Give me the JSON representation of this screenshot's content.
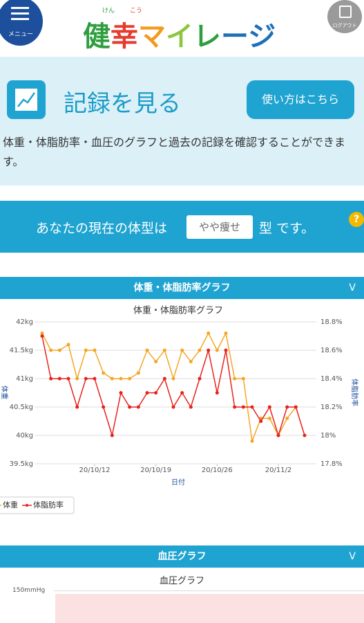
{
  "header": {
    "menu": "メニュー",
    "logo": "健幸マイレージ",
    "ruby": [
      "けん",
      "こう"
    ],
    "logout": "ログアウト"
  },
  "section": {
    "title": "記録を見る",
    "button": "使い方はこちら",
    "description": "体重・体脂肪率・血圧のグラフと過去の記録を確認することができます。"
  },
  "body_type": {
    "prefix": "あなたの現在の体型は",
    "value": "やや痩せ",
    "suffix": "型 です。",
    "help": "?"
  },
  "weight_panel": {
    "header": "体重・体脂肪率グラフ",
    "toggle": "V"
  },
  "chart_data": {
    "type": "line",
    "title": "体重・体脂肪率グラフ",
    "xlabel": "日付",
    "ylabel": "体重",
    "y2label": "体脂肪率",
    "x": [
      "20/10/6",
      "20/10/7",
      "20/10/8",
      "20/10/9",
      "20/10/10",
      "20/10/11",
      "20/10/12",
      "20/10/13",
      "20/10/14",
      "20/10/15",
      "20/10/16",
      "20/10/17",
      "20/10/18",
      "20/10/19",
      "20/10/20",
      "20/10/21",
      "20/10/22",
      "20/10/23",
      "20/10/24",
      "20/10/25",
      "20/10/26",
      "20/10/27",
      "20/10/28",
      "20/10/29",
      "20/10/30",
      "20/10/31",
      "20/11/1",
      "20/11/2",
      "20/11/3",
      "20/11/4",
      "20/11/5"
    ],
    "xticks": [
      "20/10/12",
      "20/10/19",
      "20/10/26",
      "20/11/2"
    ],
    "ylim": [
      39.5,
      42
    ],
    "yticks": [
      {
        "value": 39.5,
        "label": "39.5kg"
      },
      {
        "value": 40,
        "label": "40kg"
      },
      {
        "value": 40.5,
        "label": "40.5kg"
      },
      {
        "value": 41,
        "label": "41kg"
      },
      {
        "value": 41.5,
        "label": "41.5kg"
      },
      {
        "value": 42,
        "label": "42kg"
      }
    ],
    "y2lim": [
      17.8,
      18.8
    ],
    "y2ticks": [
      {
        "value": 17.8,
        "label": "17.8%"
      },
      {
        "value": 18,
        "label": "18%"
      },
      {
        "value": 18.2,
        "label": "18.2%"
      },
      {
        "value": 18.4,
        "label": "18.4%"
      },
      {
        "value": 18.6,
        "label": "18.6%"
      },
      {
        "value": 18.8,
        "label": "18.8%"
      }
    ],
    "grid": true,
    "series": [
      {
        "name": "体重",
        "color": "#f5a623",
        "values": [
          41.8,
          41.5,
          41.5,
          41.6,
          41.0,
          41.5,
          41.5,
          41.1,
          41.0,
          41.0,
          41.0,
          41.1,
          41.5,
          41.3,
          41.5,
          41.0,
          41.5,
          41.3,
          41.5,
          41.8,
          41.5,
          41.8,
          41.0,
          41.0,
          39.9,
          40.3,
          40.3,
          40.0,
          40.3,
          40.5,
          null
        ]
      },
      {
        "name": "体脂肪率",
        "color": "#e8211b",
        "axis": "y2",
        "values": [
          18.7,
          18.4,
          18.4,
          18.4,
          18.2,
          18.4,
          18.4,
          18.2,
          18.0,
          18.3,
          18.2,
          18.2,
          18.3,
          18.3,
          18.4,
          18.2,
          18.3,
          18.2,
          18.4,
          18.6,
          18.3,
          18.6,
          18.2,
          18.2,
          18.2,
          18.1,
          18.2,
          18.0,
          18.2,
          18.2,
          18.0
        ]
      }
    ]
  },
  "bp_panel": {
    "header": "血圧グラフ",
    "toggle": "V",
    "chart_title": "血圧グラフ",
    "tick": "150mmHg"
  }
}
